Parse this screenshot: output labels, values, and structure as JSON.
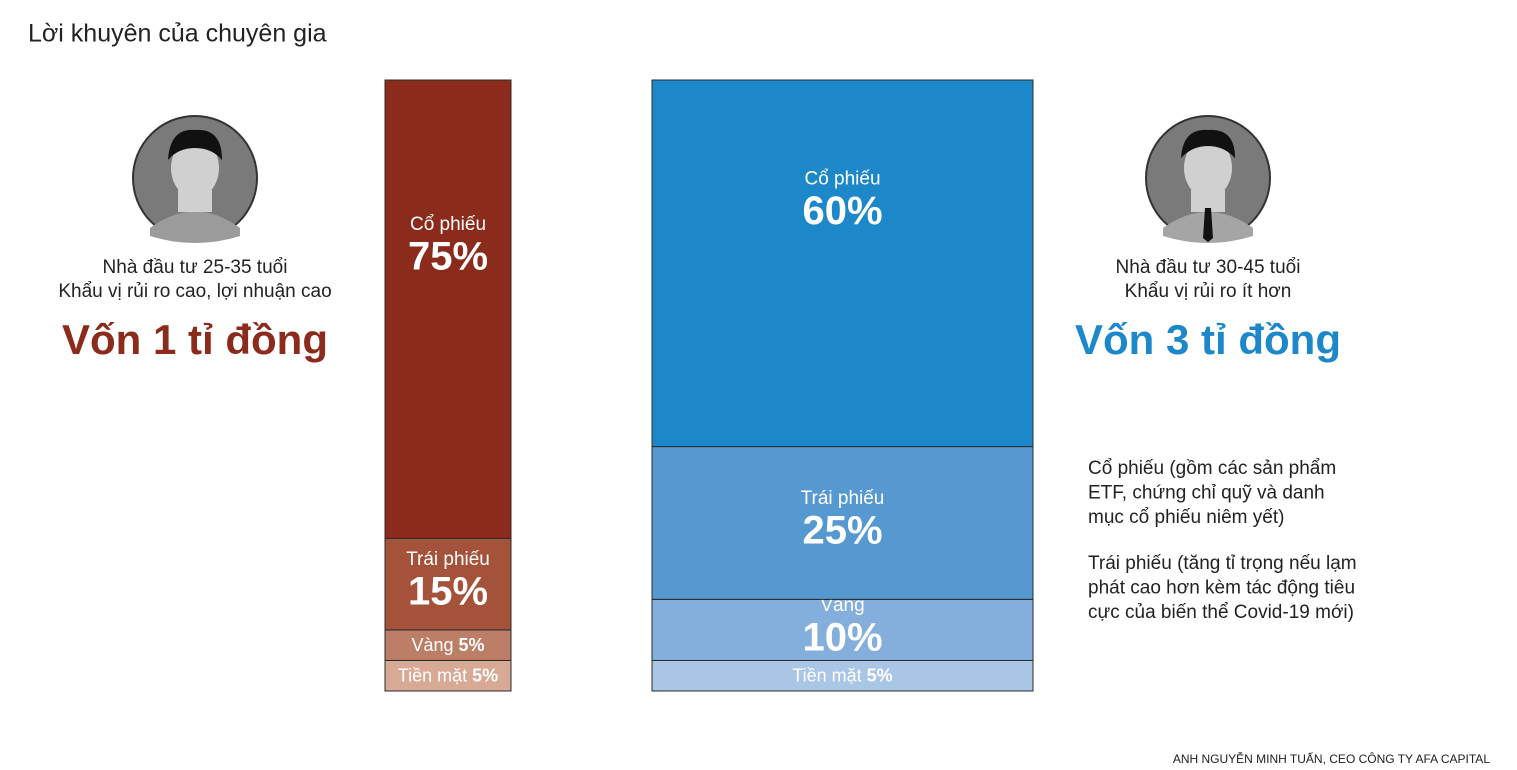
{
  "title": "Lời khuyên của chuyên gia",
  "profiles": [
    {
      "lines": [
        "Nhà đầu tư 25-35 tuổi",
        "Khẩu vị rủi ro cao, lợi nhuận cao"
      ],
      "capital": "Vốn 1 tỉ đồng"
    },
    {
      "lines": [
        "Nhà đầu tư 30-45 tuổi",
        "Khẩu vị rủi ro ít hơn"
      ],
      "capital": "Vốn 3 tỉ đồng"
    }
  ],
  "notes": [
    [
      "Cổ phiếu (gồm các sản phẩm",
      "ETF, chứng chỉ quỹ và danh",
      "mục cổ phiếu niêm yết)"
    ],
    [
      "Trái phiếu (tăng tỉ trọng nếu lạm",
      "phát cao hơn kèm tác động tiêu",
      "cực của biến thể Covid-19 mới)"
    ]
  ],
  "source": "ANH NGUYỄN MINH TUẤN, CEO CÔNG TY AFA CAPITAL",
  "chart_data": [
    {
      "type": "stacked_bar",
      "ylim": [
        0,
        100
      ],
      "series": [
        {
          "name": "Cổ phiếu",
          "color": "#8b2b1b",
          "values": [
            75
          ],
          "value_labels": [
            "75%"
          ]
        },
        {
          "name": "Trái phiếu",
          "color": "#a5523b",
          "values": [
            15
          ],
          "value_labels": [
            "15%"
          ]
        },
        {
          "name": "Vàng",
          "color": "#bc7e66",
          "values": [
            5
          ],
          "value_labels": [
            "5%"
          ]
        },
        {
          "name": "Tiền mặt",
          "color": "#d8aa95",
          "values": [
            5
          ],
          "value_labels": [
            "5%"
          ]
        }
      ]
    },
    {
      "type": "stacked_bar",
      "ylim": [
        0,
        100
      ],
      "series": [
        {
          "name": "Cổ phiếu",
          "color": "#1d88c9",
          "values": [
            60
          ],
          "value_labels": [
            "60%"
          ]
        },
        {
          "name": "Trái phiếu",
          "color": "#5699d1",
          "values": [
            25
          ],
          "value_labels": [
            "25%"
          ]
        },
        {
          "name": "Vàng",
          "color": "#84afdc",
          "values": [
            10
          ],
          "value_labels": [
            "10%"
          ]
        },
        {
          "name": "Tiền mặt",
          "color": "#a9c6e7",
          "values": [
            5
          ],
          "value_labels": [
            "5%"
          ]
        }
      ]
    }
  ]
}
